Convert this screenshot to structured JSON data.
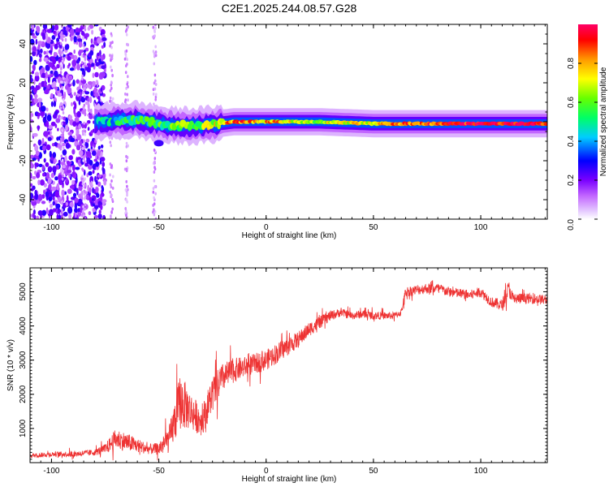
{
  "title": "C2E1.2025.244.08.57.G28",
  "chart_data": [
    {
      "type": "heatmap",
      "title": "C2E1.2025.244.08.57.G28",
      "xlabel": "Height of straight line (km)",
      "ylabel": "Frequency (Hz)",
      "xlim": [
        -110,
        131
      ],
      "ylim": [
        -50,
        50
      ],
      "xticks": [
        -100,
        -50,
        0,
        50,
        100
      ],
      "xtick_labels": [
        "-100",
        "-50",
        "0",
        "50",
        "100"
      ],
      "yticks": [
        -40,
        -20,
        0,
        20,
        40
      ],
      "ytick_labels": [
        "-40",
        "-20",
        "0",
        "20",
        "40"
      ],
      "colorbar": {
        "label": "Normalized spectral amplitude",
        "range": [
          0.0,
          1.0
        ],
        "ticks": [
          0.0,
          0.2,
          0.4,
          0.6,
          0.8
        ],
        "tick_labels": [
          "0.0",
          "0.2",
          "0.4",
          "0.6",
          "0.8"
        ]
      },
      "signal_band": {
        "description_points": [
          {
            "x": -78,
            "freq": 0,
            "amp": 0.45
          },
          {
            "x": -60,
            "freq": 1,
            "amp": 0.5
          },
          {
            "x": -45,
            "freq": -2,
            "amp": 0.55
          },
          {
            "x": -30,
            "freq": -2,
            "amp": 0.6
          },
          {
            "x": -15,
            "freq": 0,
            "amp": 0.85
          },
          {
            "x": 0,
            "freq": 0,
            "amp": 0.8
          },
          {
            "x": 25,
            "freq": 0,
            "amp": 0.65
          },
          {
            "x": 50,
            "freq": -1,
            "amp": 0.75
          },
          {
            "x": 80,
            "freq": -1,
            "amp": 0.9
          },
          {
            "x": 100,
            "freq": -1,
            "amp": 0.95
          },
          {
            "x": 131,
            "freq": -1,
            "amp": 0.95
          }
        ]
      }
    },
    {
      "type": "line",
      "xlabel": "Height of straight line (km)",
      "ylabel": "SNR (10 * v/v)",
      "xlim": [
        -110,
        131
      ],
      "ylim": [
        0,
        5700
      ],
      "xticks": [
        -100,
        -50,
        0,
        50,
        100
      ],
      "xtick_labels": [
        "-100",
        "-50",
        "0",
        "50",
        "100"
      ],
      "yticks": [
        1000,
        2000,
        3000,
        4000,
        5000
      ],
      "ytick_labels": [
        "1000",
        "2000",
        "3000",
        "4000",
        "5000"
      ],
      "color": "#ee3333",
      "series": [
        {
          "name": "SNR",
          "x": [
            -110,
            -100,
            -90,
            -80,
            -75,
            -70,
            -65,
            -60,
            -55,
            -50,
            -45,
            -40,
            -35,
            -30,
            -25,
            -20,
            -15,
            -10,
            -5,
            0,
            5,
            10,
            15,
            20,
            25,
            30,
            35,
            40,
            45,
            50,
            55,
            60,
            63,
            65,
            70,
            75,
            80,
            85,
            90,
            95,
            100,
            105,
            110,
            113,
            115,
            120,
            125,
            131
          ],
          "y": [
            200,
            250,
            250,
            300,
            400,
            700,
            600,
            500,
            400,
            400,
            700,
            1800,
            1500,
            1200,
            2000,
            2500,
            2700,
            2800,
            2900,
            3000,
            3200,
            3400,
            3600,
            3900,
            4100,
            4300,
            4400,
            4300,
            4350,
            4300,
            4300,
            4300,
            4400,
            5000,
            5050,
            5100,
            5100,
            5000,
            4950,
            4900,
            5000,
            4700,
            4600,
            5100,
            4800,
            4800,
            4800,
            4750
          ],
          "noise": [
            100,
            120,
            150,
            150,
            250,
            500,
            450,
            350,
            250,
            300,
            700,
            1400,
            900,
            700,
            900,
            700,
            600,
            500,
            500,
            500,
            500,
            450,
            400,
            350,
            300,
            250,
            200,
            200,
            200,
            200,
            180,
            180,
            180,
            250,
            250,
            250,
            250,
            250,
            250,
            250,
            250,
            250,
            300,
            400,
            300,
            250,
            250,
            250
          ]
        }
      ]
    }
  ]
}
